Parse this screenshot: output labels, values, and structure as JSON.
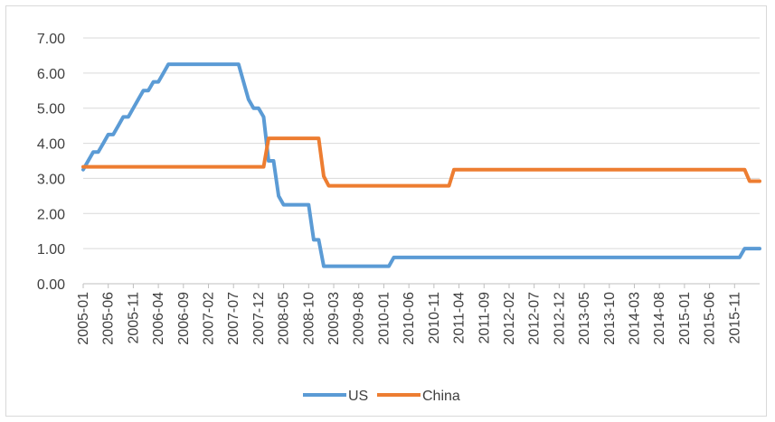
{
  "chart_data": {
    "type": "line",
    "title": "",
    "xlabel": "",
    "ylabel": "",
    "ylim": [
      0,
      7
    ],
    "y_ticks": [
      "0.00",
      "1.00",
      "2.00",
      "3.00",
      "4.00",
      "5.00",
      "6.00",
      "7.00"
    ],
    "grid": "horizontal",
    "legend_position": "bottom",
    "x_start": "2005-01",
    "x_end": "2016-04",
    "x_tick_labels": [
      "2005-01",
      "2005-06",
      "2005-11",
      "2006-04",
      "2006-09",
      "2007-02",
      "2007-07",
      "2007-12",
      "2008-05",
      "2008-10",
      "2009-03",
      "2009-08",
      "2010-01",
      "2010-06",
      "2010-11",
      "2011-04",
      "2011-09",
      "2012-02",
      "2012-07",
      "2012-12",
      "2013-05",
      "2013-10",
      "2014-03",
      "2014-08",
      "2015-01",
      "2015-06",
      "2015-11"
    ],
    "series": [
      {
        "name": "US",
        "color": "#5B9BD5",
        "points": [
          [
            "2005-01",
            3.25
          ],
          [
            "2005-02",
            3.5
          ],
          [
            "2005-03",
            3.75
          ],
          [
            "2005-04",
            3.75
          ],
          [
            "2005-05",
            4.0
          ],
          [
            "2005-06",
            4.25
          ],
          [
            "2005-07",
            4.25
          ],
          [
            "2005-08",
            4.5
          ],
          [
            "2005-09",
            4.75
          ],
          [
            "2005-10",
            4.75
          ],
          [
            "2005-11",
            5.0
          ],
          [
            "2005-12",
            5.25
          ],
          [
            "2006-01",
            5.5
          ],
          [
            "2006-02",
            5.5
          ],
          [
            "2006-03",
            5.75
          ],
          [
            "2006-04",
            5.75
          ],
          [
            "2006-05",
            6.0
          ],
          [
            "2006-06",
            6.25
          ],
          [
            "2007-08",
            6.25
          ],
          [
            "2007-09",
            5.75
          ],
          [
            "2007-10",
            5.25
          ],
          [
            "2007-11",
            5.0
          ],
          [
            "2007-12",
            5.0
          ],
          [
            "2008-01",
            4.75
          ],
          [
            "2008-02",
            3.5
          ],
          [
            "2008-03",
            3.5
          ],
          [
            "2008-04",
            2.5
          ],
          [
            "2008-05",
            2.25
          ],
          [
            "2008-10",
            2.25
          ],
          [
            "2008-11",
            1.25
          ],
          [
            "2008-12",
            1.25
          ],
          [
            "2009-01",
            0.5
          ],
          [
            "2010-02",
            0.5
          ],
          [
            "2010-03",
            0.75
          ],
          [
            "2015-12",
            0.75
          ],
          [
            "2016-01",
            1.0
          ],
          [
            "2016-04",
            1.0
          ]
        ]
      },
      {
        "name": "China",
        "color": "#ED7D31",
        "points": [
          [
            "2005-01",
            3.33
          ],
          [
            "2008-01",
            3.33
          ],
          [
            "2008-02",
            4.14
          ],
          [
            "2008-12",
            4.14
          ],
          [
            "2009-01",
            3.06
          ],
          [
            "2009-02",
            2.79
          ],
          [
            "2011-02",
            2.79
          ],
          [
            "2011-03",
            3.25
          ],
          [
            "2016-01",
            3.25
          ],
          [
            "2016-02",
            2.92
          ],
          [
            "2016-04",
            2.92
          ]
        ]
      }
    ]
  }
}
